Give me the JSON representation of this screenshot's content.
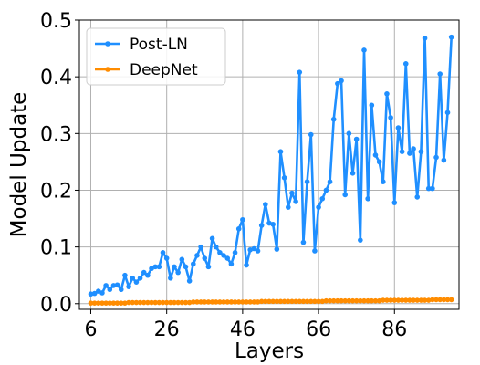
{
  "chart_data": {
    "type": "line",
    "title": "",
    "xlabel": "Layers",
    "ylabel": "Model Update",
    "xlim": [
      3,
      103
    ],
    "ylim": [
      -0.01,
      0.5
    ],
    "xticks": [
      6,
      26,
      46,
      66,
      86
    ],
    "yticks": [
      0.0,
      0.1,
      0.2,
      0.3,
      0.4,
      0.5
    ],
    "ytick_labels": [
      "0.0",
      "0.1",
      "0.2",
      "0.3",
      "0.4",
      "0.5"
    ],
    "grid": true,
    "legend_position": "top-left",
    "x": [
      6,
      7,
      8,
      9,
      10,
      11,
      12,
      13,
      14,
      15,
      16,
      17,
      18,
      19,
      20,
      21,
      22,
      23,
      24,
      25,
      26,
      27,
      28,
      29,
      30,
      31,
      32,
      33,
      34,
      35,
      36,
      37,
      38,
      39,
      40,
      41,
      42,
      43,
      44,
      45,
      46,
      47,
      48,
      49,
      50,
      51,
      52,
      53,
      54,
      55,
      56,
      57,
      58,
      59,
      60,
      61,
      62,
      63,
      64,
      65,
      66,
      67,
      68,
      69,
      70,
      71,
      72,
      73,
      74,
      75,
      76,
      77,
      78,
      79,
      80,
      81,
      82,
      83,
      84,
      85,
      86,
      87,
      88,
      89,
      90,
      91,
      92,
      93,
      94,
      95,
      96,
      97,
      98,
      99,
      100,
      101
    ],
    "series": [
      {
        "name": "Post-LN",
        "color": "#1f8fff",
        "values": [
          0.017,
          0.018,
          0.022,
          0.019,
          0.032,
          0.025,
          0.032,
          0.033,
          0.025,
          0.05,
          0.03,
          0.045,
          0.038,
          0.045,
          0.055,
          0.05,
          0.062,
          0.065,
          0.065,
          0.09,
          0.08,
          0.045,
          0.065,
          0.055,
          0.078,
          0.065,
          0.04,
          0.07,
          0.085,
          0.1,
          0.08,
          0.065,
          0.115,
          0.1,
          0.09,
          0.085,
          0.08,
          0.07,
          0.09,
          0.132,
          0.148,
          0.068,
          0.095,
          0.097,
          0.093,
          0.138,
          0.175,
          0.142,
          0.14,
          0.096,
          0.268,
          0.222,
          0.17,
          0.195,
          0.18,
          0.408,
          0.108,
          0.215,
          0.298,
          0.093,
          0.17,
          0.185,
          0.2,
          0.215,
          0.325,
          0.388,
          0.393,
          0.192,
          0.3,
          0.23,
          0.29,
          0.112,
          0.447,
          0.185,
          0.35,
          0.262,
          0.25,
          0.215,
          0.37,
          0.328,
          0.178,
          0.31,
          0.268,
          0.423,
          0.265,
          0.273,
          0.188,
          0.268,
          0.468,
          0.203,
          0.203,
          0.258,
          0.405,
          0.253,
          0.337,
          0.47
        ]
      },
      {
        "name": "DeepNet",
        "color": "#ff8c00",
        "values": [
          0.001,
          0.001,
          0.001,
          0.001,
          0.001,
          0.001,
          0.001,
          0.001,
          0.001,
          0.001,
          0.002,
          0.002,
          0.002,
          0.002,
          0.002,
          0.002,
          0.002,
          0.002,
          0.002,
          0.002,
          0.002,
          0.002,
          0.002,
          0.002,
          0.002,
          0.002,
          0.002,
          0.003,
          0.003,
          0.003,
          0.003,
          0.003,
          0.003,
          0.003,
          0.003,
          0.003,
          0.003,
          0.003,
          0.003,
          0.003,
          0.003,
          0.003,
          0.003,
          0.003,
          0.003,
          0.004,
          0.004,
          0.004,
          0.004,
          0.004,
          0.004,
          0.004,
          0.004,
          0.004,
          0.004,
          0.004,
          0.004,
          0.004,
          0.004,
          0.004,
          0.004,
          0.004,
          0.005,
          0.005,
          0.005,
          0.005,
          0.005,
          0.005,
          0.005,
          0.005,
          0.005,
          0.005,
          0.005,
          0.005,
          0.005,
          0.005,
          0.005,
          0.006,
          0.006,
          0.006,
          0.006,
          0.006,
          0.006,
          0.006,
          0.006,
          0.006,
          0.006,
          0.006,
          0.006,
          0.006,
          0.007,
          0.007,
          0.007,
          0.007,
          0.007,
          0.007
        ]
      }
    ]
  }
}
